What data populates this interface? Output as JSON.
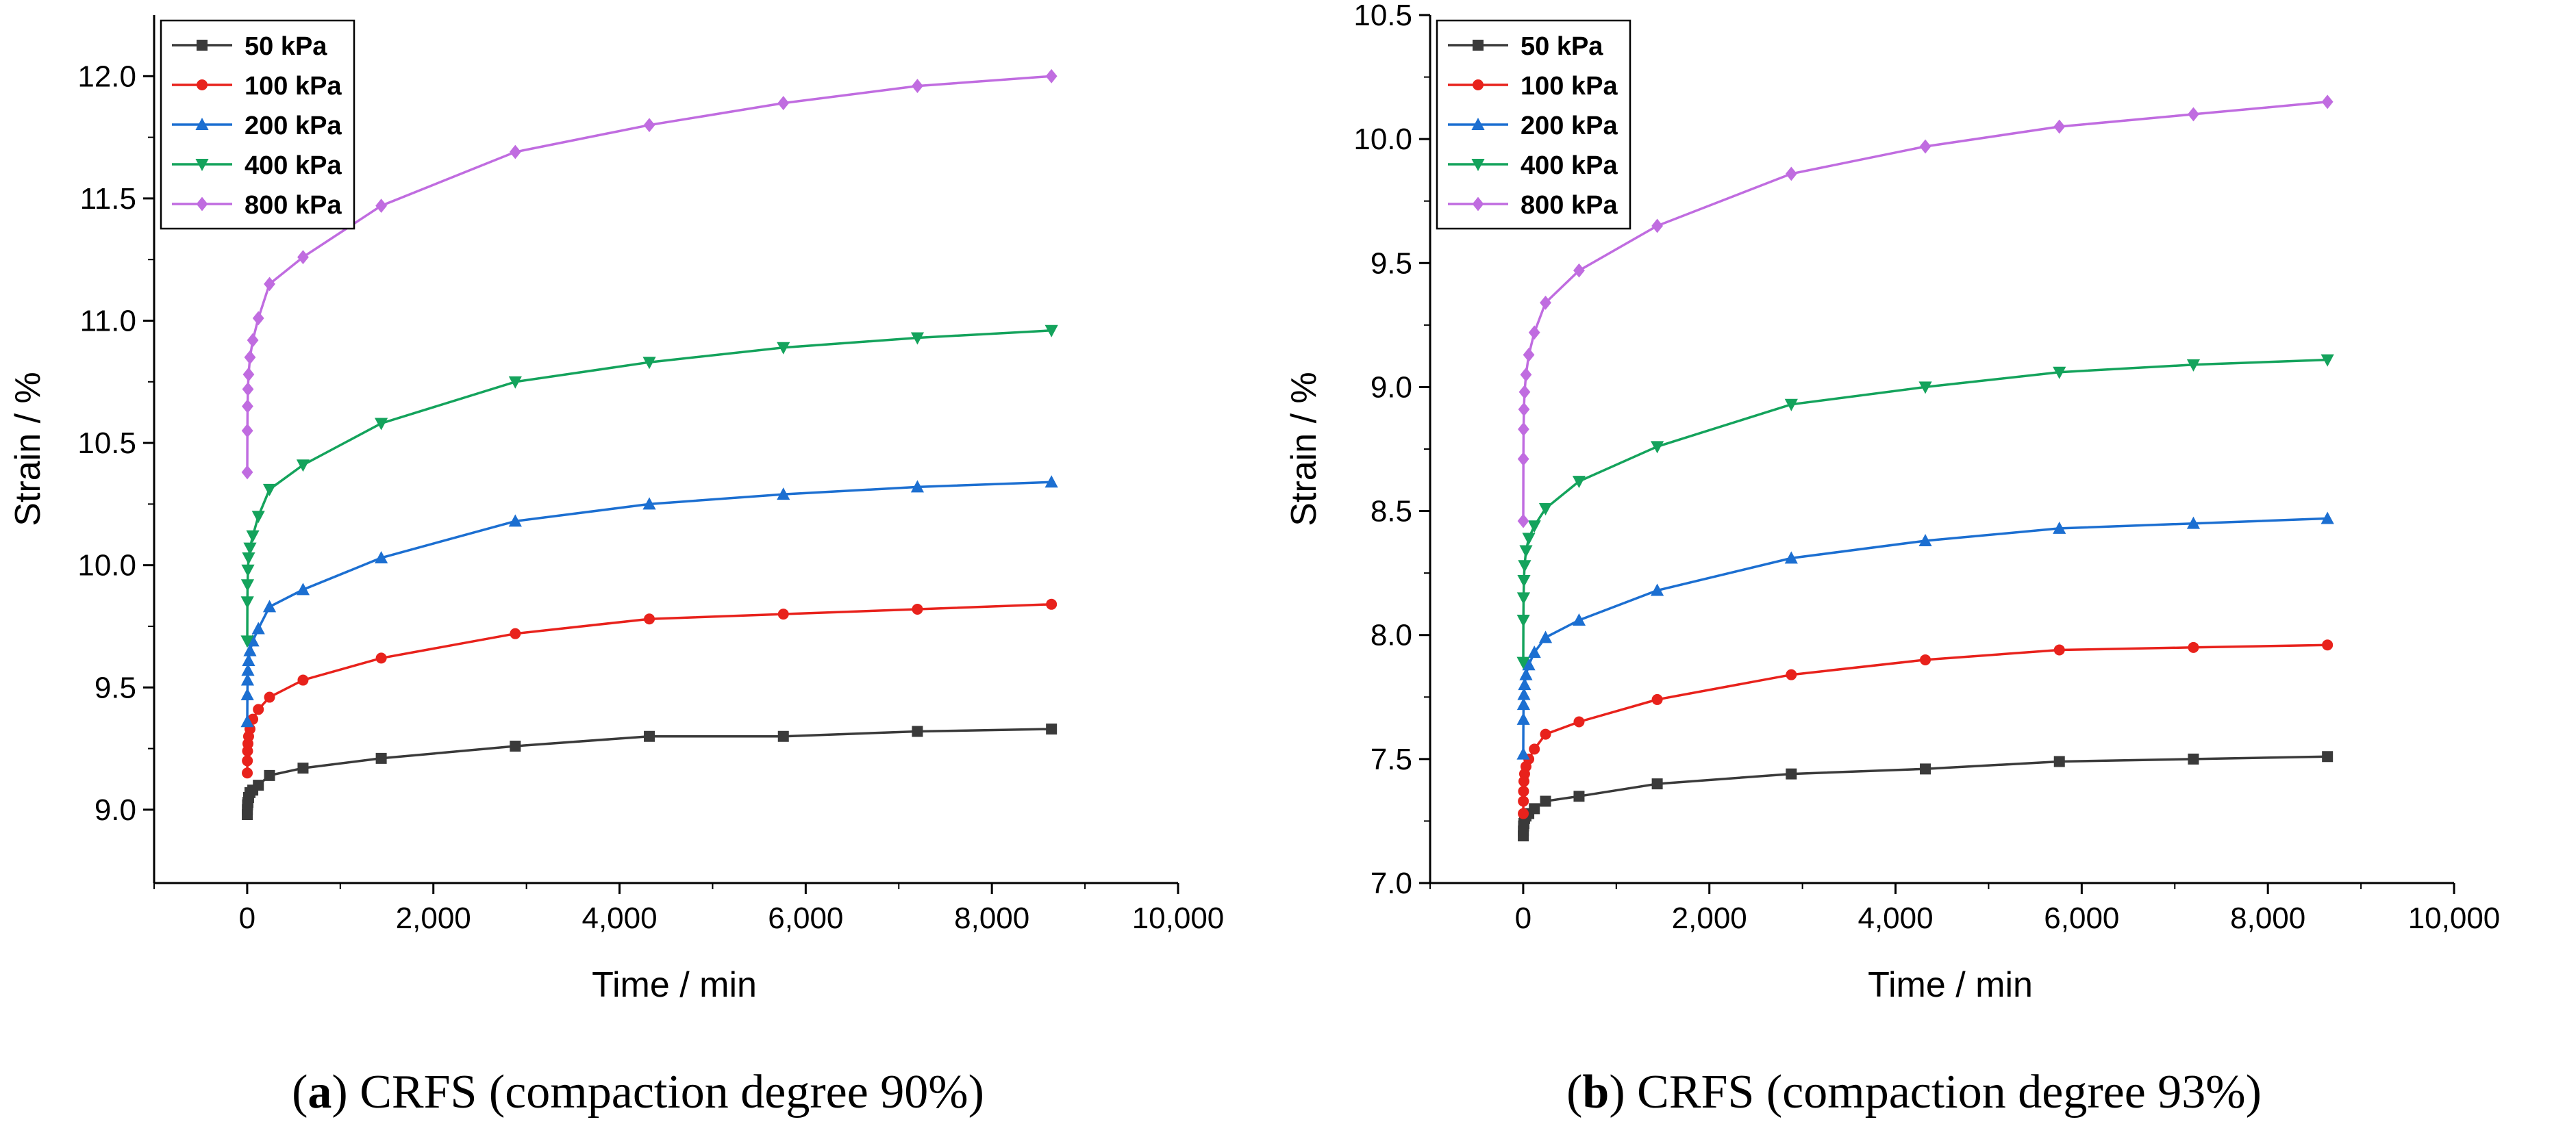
{
  "chart_data": [
    {
      "type": "line",
      "panel_id": "a",
      "xlabel": "Time / min",
      "ylabel": "Strain / %",
      "xlim": [
        -1000,
        10000
      ],
      "ylim": [
        8.7,
        12.25
      ],
      "xticks": [
        0,
        2000,
        4000,
        6000,
        8000,
        10000
      ],
      "xtick_labels": [
        "0",
        "2,000",
        "4,000",
        "6,000",
        "8,000",
        "10,000"
      ],
      "yticks": [
        9.0,
        9.5,
        10.0,
        10.5,
        11.0,
        11.5,
        12.0
      ],
      "ytick_labels": [
        "9.0",
        "9.5",
        "10.0",
        "10.5",
        "11.0",
        "11.5",
        "12.0"
      ],
      "legend_position": "top-left",
      "caption": {
        "label": "a",
        "text": "CRFS (compaction degree 90%)"
      },
      "x": [
        1,
        2,
        4,
        8,
        15,
        30,
        60,
        120,
        240,
        600,
        1440,
        2880,
        4320,
        5760,
        7200,
        8640
      ],
      "series": [
        {
          "name": "50 kPa",
          "color": "#3a3a3a",
          "marker": "square",
          "values": [
            8.98,
            9.0,
            9.02,
            9.03,
            9.05,
            9.07,
            9.08,
            9.1,
            9.14,
            9.17,
            9.21,
            9.26,
            9.3,
            9.3,
            9.32,
            9.33
          ]
        },
        {
          "name": "100 kPa",
          "color": "#e8221c",
          "marker": "circle",
          "values": [
            9.15,
            9.2,
            9.24,
            9.27,
            9.3,
            9.33,
            9.37,
            9.41,
            9.46,
            9.53,
            9.62,
            9.72,
            9.78,
            9.8,
            9.82,
            9.84
          ]
        },
        {
          "name": "200 kPa",
          "color": "#1c6fd1",
          "marker": "triangle-up",
          "values": [
            9.36,
            9.47,
            9.53,
            9.57,
            9.61,
            9.65,
            9.69,
            9.74,
            9.83,
            9.9,
            10.03,
            10.18,
            10.25,
            10.29,
            10.32,
            10.34
          ]
        },
        {
          "name": "400 kPa",
          "color": "#14a35c",
          "marker": "triangle-down",
          "values": [
            9.69,
            9.85,
            9.92,
            9.98,
            10.03,
            10.07,
            10.12,
            10.2,
            10.31,
            10.41,
            10.58,
            10.75,
            10.83,
            10.89,
            10.93,
            10.96
          ]
        },
        {
          "name": "800 kPa",
          "color": "#c06ce0",
          "marker": "diamond",
          "values": [
            10.38,
            10.55,
            10.65,
            10.72,
            10.78,
            10.85,
            10.92,
            11.01,
            11.15,
            11.26,
            11.47,
            11.69,
            11.8,
            11.89,
            11.96,
            12.0
          ]
        }
      ]
    },
    {
      "type": "line",
      "panel_id": "b",
      "xlabel": "Time / min",
      "ylabel": "Strain / %",
      "xlim": [
        -1000,
        10000
      ],
      "ylim": [
        7.0,
        10.5
      ],
      "xticks": [
        0,
        2000,
        4000,
        6000,
        8000,
        10000
      ],
      "xtick_labels": [
        "0",
        "2,000",
        "4,000",
        "6,000",
        "8,000",
        "10,000"
      ],
      "yticks": [
        7.0,
        7.5,
        8.0,
        8.5,
        9.0,
        9.5,
        10.0,
        10.5
      ],
      "ytick_labels": [
        "7.0",
        "7.5",
        "8.0",
        "8.5",
        "9.0",
        "9.5",
        "10.0",
        "10.5"
      ],
      "legend_position": "top-left",
      "caption": {
        "label": "b",
        "text": "CRFS (compaction degree 93%)"
      },
      "x": [
        1,
        2,
        4,
        8,
        15,
        30,
        60,
        120,
        240,
        600,
        1440,
        2880,
        4320,
        5760,
        7200,
        8640
      ],
      "series": [
        {
          "name": "50 kPa",
          "color": "#3a3a3a",
          "marker": "square",
          "values": [
            7.19,
            7.21,
            7.23,
            7.24,
            7.26,
            7.27,
            7.28,
            7.3,
            7.33,
            7.35,
            7.4,
            7.44,
            7.46,
            7.49,
            7.5,
            7.51
          ]
        },
        {
          "name": "100 kPa",
          "color": "#e8221c",
          "marker": "circle",
          "values": [
            7.28,
            7.33,
            7.37,
            7.41,
            7.44,
            7.47,
            7.5,
            7.54,
            7.6,
            7.65,
            7.74,
            7.84,
            7.9,
            7.94,
            7.95,
            7.96
          ]
        },
        {
          "name": "200 kPa",
          "color": "#1c6fd1",
          "marker": "triangle-up",
          "values": [
            7.52,
            7.66,
            7.72,
            7.76,
            7.8,
            7.84,
            7.88,
            7.93,
            7.99,
            8.06,
            8.18,
            8.31,
            8.38,
            8.43,
            8.45,
            8.47
          ]
        },
        {
          "name": "400 kPa",
          "color": "#14a35c",
          "marker": "triangle-down",
          "values": [
            7.89,
            8.06,
            8.15,
            8.22,
            8.28,
            8.34,
            8.39,
            8.44,
            8.51,
            8.62,
            8.76,
            8.93,
            9.0,
            9.06,
            9.09,
            9.11
          ]
        },
        {
          "name": "800 kPa",
          "color": "#c06ce0",
          "marker": "diamond",
          "values": [
            8.46,
            8.71,
            8.83,
            8.91,
            8.98,
            9.05,
            9.13,
            9.22,
            9.34,
            9.47,
            9.65,
            9.86,
            9.97,
            10.05,
            10.1,
            10.15
          ]
        }
      ]
    }
  ]
}
